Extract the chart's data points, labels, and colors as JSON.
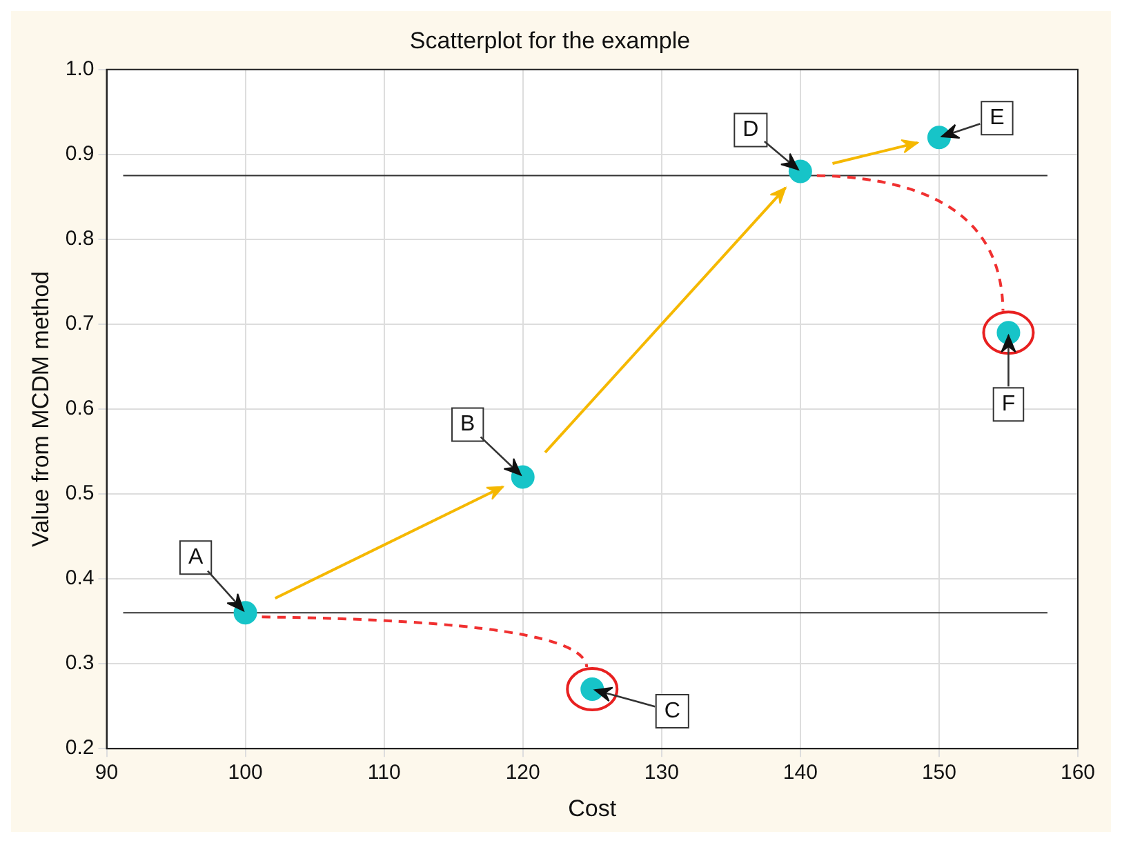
{
  "chart_data": {
    "type": "scatter",
    "title": "Scatterplot for the example",
    "xlabel": "Cost",
    "ylabel": "Value from MCDM method",
    "x": [
      100,
      120,
      125,
      140,
      150,
      155
    ],
    "series": [
      {
        "color": "#17c4c8",
        "values": [
          0.36,
          0.52,
          0.27,
          0.88,
          0.92,
          0.69
        ]
      }
    ],
    "xlim": [
      90,
      160
    ],
    "xticks": [
      90,
      100,
      110,
      120,
      130,
      140,
      150,
      160
    ],
    "ylim": [
      0.2,
      1.0
    ],
    "yticks": [
      0.2,
      0.3,
      0.4,
      0.5,
      0.6,
      0.7,
      0.8,
      0.9,
      {
        "value": 1.0,
        "label": "1.0"
      }
    ],
    "ref_lines": [
      {
        "axis": "y",
        "value": 0.875,
        "color": "#333333"
      },
      {
        "axis": "y",
        "value": 0.36,
        "color": "#333333"
      }
    ],
    "annotations": [
      {
        "text": "A",
        "x": 100,
        "y": 0.36
      },
      {
        "text": "B",
        "x": 120,
        "y": 0.52
      },
      {
        "text": "C",
        "x": 125,
        "y": 0.27
      },
      {
        "text": "D",
        "x": 140,
        "y": 0.88
      },
      {
        "text": "E",
        "x": 150,
        "y": 0.92
      },
      {
        "text": "F",
        "x": 155,
        "y": 0.69
      }
    ],
    "grid": true,
    "marker": "circle"
  }
}
